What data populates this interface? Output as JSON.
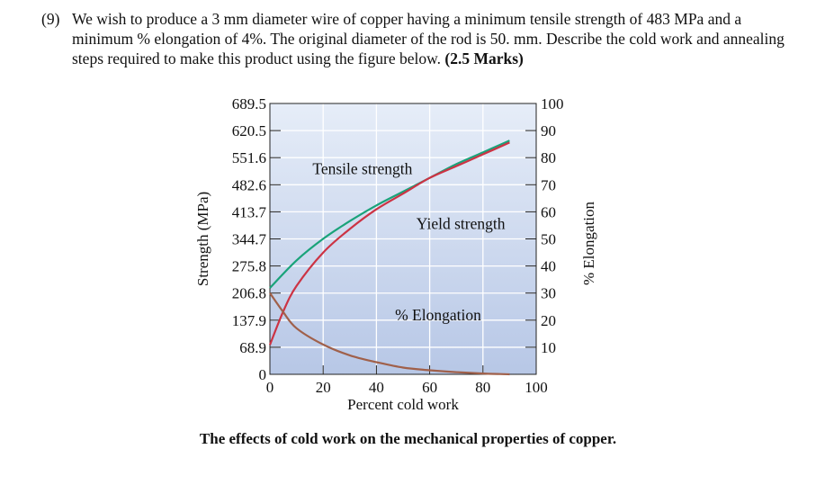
{
  "question": {
    "number": "(9)",
    "text": "We wish to produce a 3 mm diameter wire of copper having a minimum tensile strength of 483 MPa and a minimum % elongation of 4%. The original diameter of the rod is 50. mm. Describe the cold work and annealing steps required to make this product using the figure below.",
    "marks": "(2.5 Marks)"
  },
  "caption": "The effects of cold work on the mechanical properties of copper.",
  "chart_data": {
    "type": "line",
    "xlabel": "Percent cold work",
    "ylabel_left": "Strength (MPa)",
    "ylabel_right": "% Elongation",
    "xlim": [
      0,
      100
    ],
    "ylim_left": [
      0,
      689.5
    ],
    "ylim_right": [
      0,
      100
    ],
    "x_ticks": [
      "0",
      "20",
      "40",
      "60",
      "80",
      "100"
    ],
    "y_ticks_left": [
      "0",
      "68.9",
      "137.9",
      "206.8",
      "275.8",
      "344.7",
      "413.7",
      "482.6",
      "551.6",
      "620.5",
      "689.5"
    ],
    "y_ticks_right": [
      "10",
      "20",
      "30",
      "40",
      "50",
      "60",
      "70",
      "80",
      "90",
      "100"
    ],
    "grid": true,
    "series": [
      {
        "name": "Tensile strength",
        "axis": "left",
        "color": "#1aa37a",
        "x": [
          0,
          10,
          20,
          30,
          40,
          50,
          60,
          70,
          80,
          90
        ],
        "y": [
          220,
          290,
          345,
          390,
          430,
          465,
          500,
          535,
          565,
          595
        ]
      },
      {
        "name": "Yield strength",
        "axis": "left",
        "color": "#cc3344",
        "x": [
          0,
          5,
          10,
          20,
          30,
          40,
          50,
          60,
          70,
          80,
          90
        ],
        "y": [
          75,
          160,
          225,
          310,
          370,
          420,
          460,
          500,
          530,
          560,
          590
        ]
      },
      {
        "name": "% Elongation",
        "axis": "right",
        "color": "#a0604a",
        "x": [
          0,
          5,
          10,
          20,
          30,
          40,
          50,
          60,
          70,
          80,
          90
        ],
        "y": [
          30,
          23,
          17,
          11,
          7,
          4.5,
          2.5,
          1.5,
          0.8,
          0.3,
          0
        ]
      }
    ],
    "annotations": [
      {
        "text": "Tensile strength",
        "x": 16,
        "y": 510,
        "axis": "left"
      },
      {
        "text": "Yield strength",
        "x": 55,
        "y": 370,
        "axis": "left"
      },
      {
        "text": "% Elongation",
        "x": 47,
        "y": 20,
        "axis": "right"
      }
    ]
  }
}
